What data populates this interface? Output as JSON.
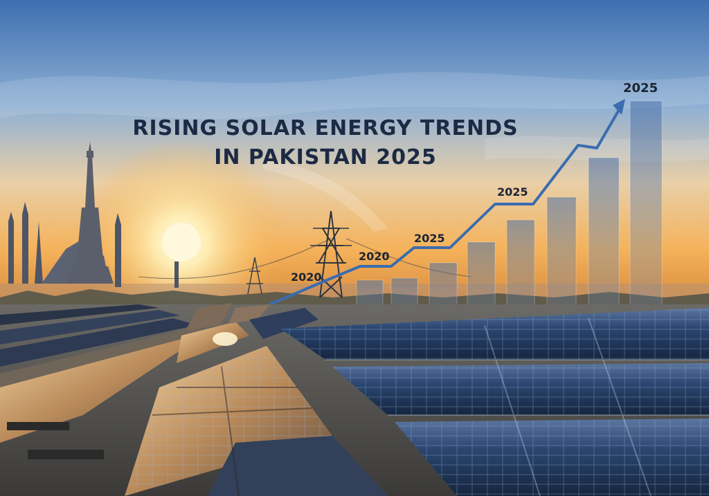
{
  "headline": {
    "line1": "RISING SOLAR ENERGY TRENDS",
    "line2": "IN PAKISTAN 2025"
  },
  "trend_labels": [
    "2020",
    "2020",
    "2025",
    "2025",
    "2025"
  ],
  "colors": {
    "sky_top": "#3d6fb0",
    "sky_horizon": "#f4b25a",
    "sun": "#fff4c8",
    "headline_text": "#1c2a44",
    "trend_line": "#3a6cb0",
    "panel_blue": "#1f3358",
    "panel_warm": "#c49660"
  },
  "icons": [
    "tower-silhouette",
    "mosque-silhouette",
    "transmission-pylon",
    "trend-arrow"
  ]
}
